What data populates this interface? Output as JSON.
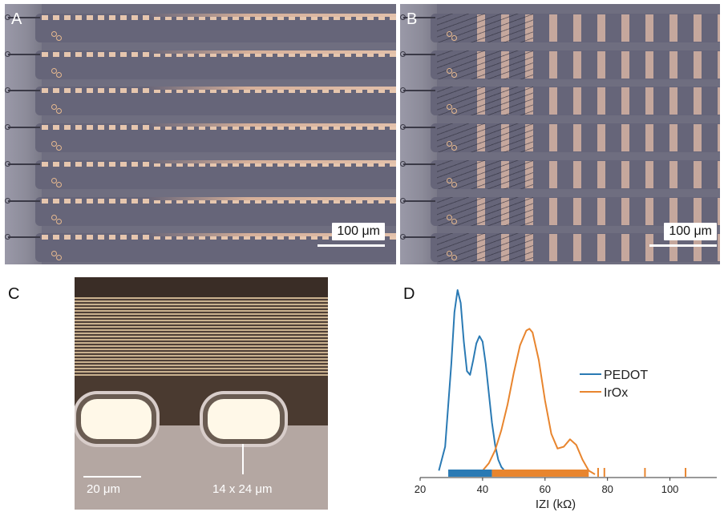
{
  "panels": {
    "a": {
      "letter": "A",
      "scale": "100 μm"
    },
    "b": {
      "letter": "B",
      "scale": "100 μm"
    },
    "c": {
      "letter": "C",
      "scale": "20 μm",
      "site_size": "14 x 24 μm"
    },
    "d": {
      "letter": "D"
    }
  },
  "colors": {
    "pedot": "#2a7ab4",
    "irox": "#e8852e"
  },
  "chart_data": {
    "type": "line",
    "xlabel": "IZI (kΩ)",
    "ylabel": "",
    "xlim": [
      20,
      115
    ],
    "xticks": [
      20,
      40,
      60,
      80,
      100
    ],
    "grid": false,
    "legend_position": "right",
    "series": [
      {
        "name": "PEDOT",
        "color": "#2a7ab4",
        "x": [
          26,
          28,
          30,
          31,
          32,
          33,
          34,
          35,
          36,
          37,
          38,
          39,
          40,
          41,
          42,
          43,
          44,
          45,
          46,
          47,
          48
        ],
        "y": [
          0.02,
          0.15,
          0.6,
          0.88,
          1.0,
          0.93,
          0.72,
          0.56,
          0.54,
          0.62,
          0.71,
          0.75,
          0.72,
          0.6,
          0.44,
          0.28,
          0.16,
          0.08,
          0.04,
          0.02,
          0.0
        ]
      },
      {
        "name": "IrOx",
        "color": "#e8852e",
        "x": [
          38,
          40,
          42,
          44,
          46,
          48,
          50,
          52,
          54,
          55,
          56,
          58,
          60,
          62,
          64,
          66,
          68,
          70,
          72,
          74,
          76
        ],
        "y": [
          0.0,
          0.02,
          0.06,
          0.13,
          0.24,
          0.38,
          0.55,
          0.7,
          0.78,
          0.79,
          0.77,
          0.62,
          0.4,
          0.22,
          0.14,
          0.15,
          0.19,
          0.16,
          0.08,
          0.02,
          0.0
        ]
      }
    ],
    "rug": [
      {
        "name": "PEDOT",
        "from": 29,
        "to": 43
      },
      {
        "name": "IrOx",
        "from": 43,
        "to": 74,
        "outliers": [
          77,
          79,
          92,
          105
        ]
      }
    ]
  }
}
